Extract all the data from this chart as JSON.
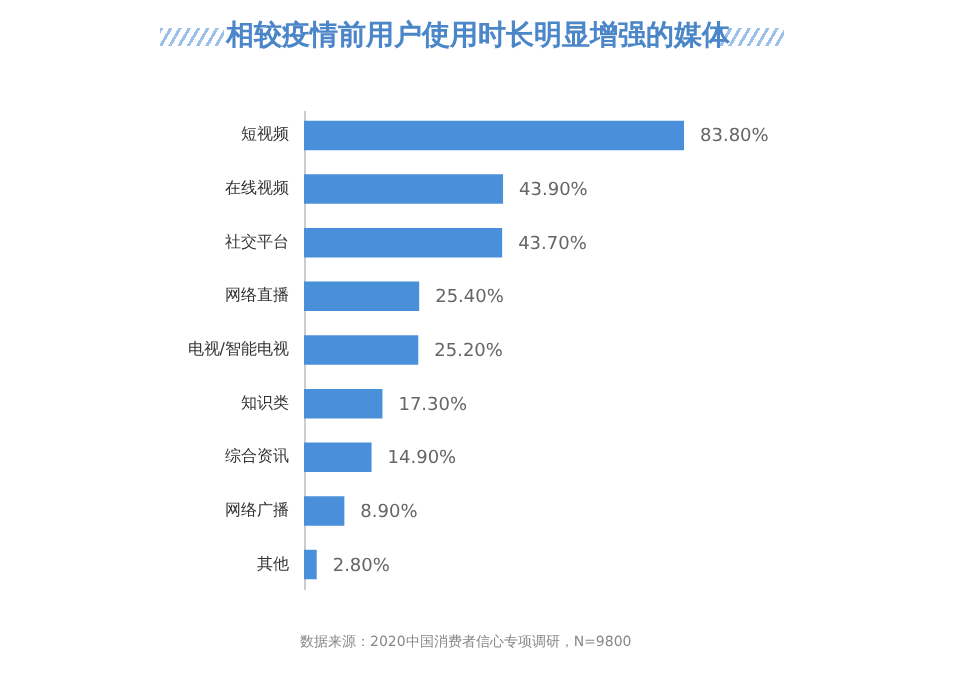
{
  "chart_data": {
    "type": "bar",
    "orientation": "horizontal",
    "title": "相较疫情前用户使用时长明显增强的媒体",
    "categories": [
      "短视频",
      "在线视频",
      "社交平台",
      "网络直播",
      "电视/智能电视",
      "知识类",
      "综合资讯",
      "网络广播",
      "其他"
    ],
    "values": [
      83.8,
      43.9,
      43.7,
      25.4,
      25.2,
      17.3,
      14.9,
      8.9,
      2.8
    ],
    "value_labels": [
      "83.80%",
      "43.90%",
      "43.70%",
      "25.40%",
      "25.20%",
      "17.30%",
      "14.90%",
      "8.90%",
      "2.80%"
    ],
    "color": "#4a8fd9",
    "annotations": [
      "数据来源：2020中国消费者信心专项调研，N=9800"
    ]
  }
}
